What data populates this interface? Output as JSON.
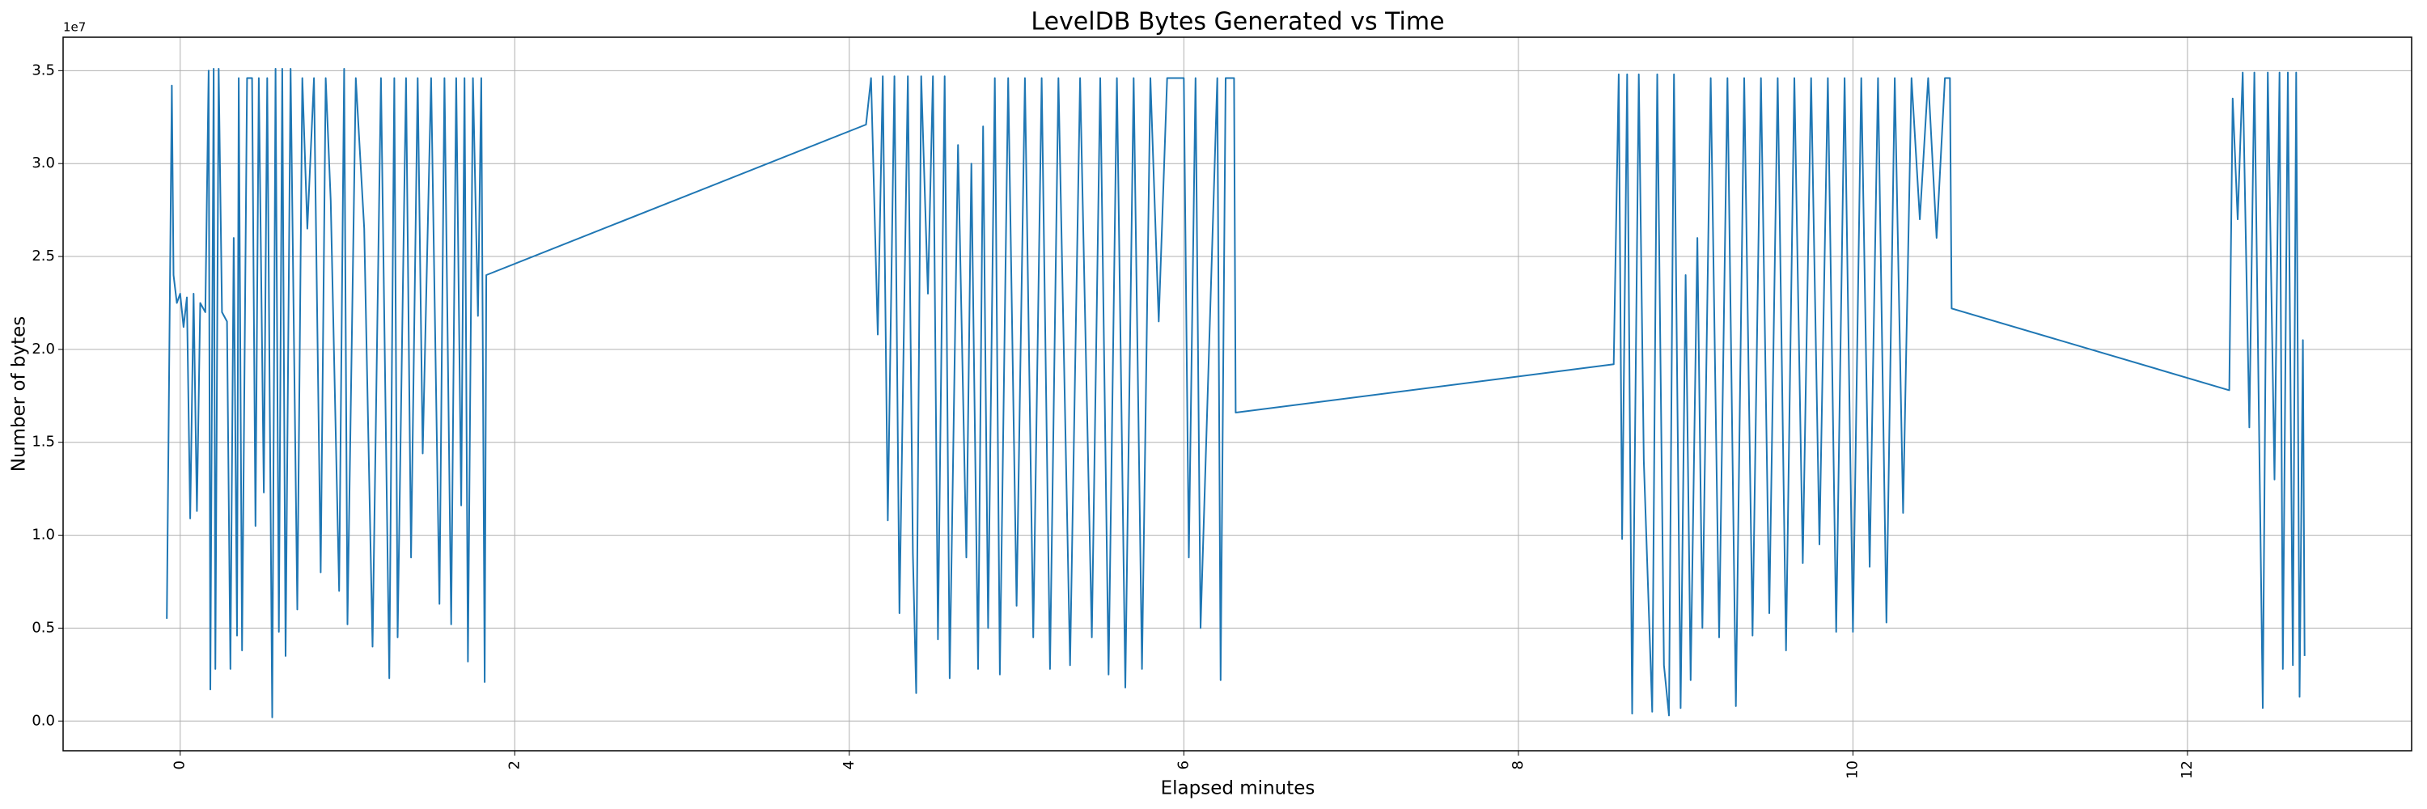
{
  "chart_data": {
    "type": "line",
    "title": "LevelDB Bytes Generated vs Time",
    "x_label": "Elapsed minutes",
    "y_label": "Number of bytes",
    "y_offset_label": "1e7",
    "grid": true,
    "xlim": [
      -0.7,
      13.34
    ],
    "ylim": [
      -0.16,
      3.68
    ],
    "xticks": [
      0,
      2,
      4,
      6,
      8,
      10,
      12
    ],
    "yticks": [
      {
        "value": 0,
        "label": "0.0"
      },
      0.5,
      {
        "value": 1,
        "label": "1.0"
      },
      1.5,
      {
        "value": 2,
        "label": "2.0"
      },
      2.5,
      {
        "value": 3,
        "label": "3.0"
      },
      3.5
    ],
    "x": [
      -0.08,
      -0.05,
      -0.04,
      -0.02,
      0,
      0.02,
      0.04,
      0.06,
      0.08,
      0.1,
      0.12,
      0.15,
      0.17,
      0.18,
      0.2,
      0.21,
      0.23,
      0.25,
      0.28,
      0.3,
      0.32,
      0.34,
      0.35,
      0.37,
      0.4,
      0.43,
      0.45,
      0.47,
      0.5,
      0.52,
      0.55,
      0.57,
      0.59,
      0.61,
      0.63,
      0.66,
      0.7,
      0.73,
      0.76,
      0.8,
      0.84,
      0.87,
      0.9,
      0.95,
      0.98,
      1.0,
      1.05,
      1.1,
      1.15,
      1.2,
      1.25,
      1.28,
      1.3,
      1.35,
      1.38,
      1.42,
      1.45,
      1.5,
      1.55,
      1.58,
      1.62,
      1.65,
      1.68,
      1.7,
      1.72,
      1.75,
      1.78,
      1.8,
      1.82,
      1.83,
      4.1,
      4.13,
      4.17,
      4.2,
      4.23,
      4.27,
      4.3,
      4.35,
      4.38,
      4.4,
      4.43,
      4.47,
      4.5,
      4.53,
      4.57,
      4.6,
      4.65,
      4.7,
      4.73,
      4.77,
      4.8,
      4.83,
      4.87,
      4.9,
      4.95,
      5.0,
      5.05,
      5.1,
      5.15,
      5.2,
      5.25,
      5.32,
      5.38,
      5.45,
      5.5,
      5.55,
      5.6,
      5.65,
      5.7,
      5.75,
      5.8,
      5.85,
      5.9,
      6.0,
      6.03,
      6.07,
      6.1,
      6.2,
      6.22,
      6.25,
      6.3,
      6.31,
      8.57,
      8.6,
      8.62,
      8.65,
      8.68,
      8.72,
      8.75,
      8.8,
      8.83,
      8.87,
      8.9,
      8.93,
      8.97,
      9.0,
      9.03,
      9.07,
      9.1,
      9.15,
      9.2,
      9.25,
      9.3,
      9.35,
      9.4,
      9.45,
      9.5,
      9.55,
      9.6,
      9.65,
      9.7,
      9.75,
      9.8,
      9.85,
      9.9,
      9.95,
      10.0,
      10.05,
      10.1,
      10.15,
      10.2,
      10.25,
      10.3,
      10.35,
      10.4,
      10.45,
      10.5,
      10.55,
      10.58,
      10.59,
      12.25,
      12.27,
      12.3,
      12.33,
      12.37,
      12.4,
      12.45,
      12.48,
      12.52,
      12.55,
      12.57,
      12.6,
      12.63,
      12.65,
      12.67,
      12.69,
      12.7
    ],
    "series": [
      {
        "color": "#1f77b4",
        "values": [
          0.55,
          3.42,
          2.4,
          2.25,
          2.3,
          2.12,
          2.28,
          1.09,
          2.3,
          1.13,
          2.25,
          2.2,
          3.5,
          0.17,
          3.51,
          0.28,
          3.51,
          2.2,
          2.15,
          0.28,
          2.6,
          0.46,
          3.46,
          0.38,
          3.46,
          3.46,
          1.05,
          3.46,
          1.23,
          3.46,
          0.02,
          3.51,
          0.48,
          3.51,
          0.35,
          3.51,
          0.6,
          3.46,
          2.65,
          3.46,
          0.8,
          3.46,
          2.8,
          0.7,
          3.51,
          0.52,
          3.46,
          2.65,
          0.4,
          3.46,
          0.23,
          3.46,
          0.45,
          3.46,
          0.88,
          3.46,
          1.44,
          3.46,
          0.63,
          3.46,
          0.52,
          3.46,
          1.16,
          3.46,
          0.32,
          3.46,
          2.18,
          3.46,
          0.21,
          2.4,
          3.21,
          3.46,
          2.08,
          3.47,
          1.08,
          3.47,
          0.58,
          3.47,
          0.9,
          0.15,
          3.47,
          2.3,
          3.47,
          0.44,
          3.47,
          0.23,
          3.1,
          0.88,
          3.0,
          0.28,
          3.2,
          0.5,
          3.46,
          0.25,
          3.46,
          0.62,
          3.46,
          0.45,
          3.46,
          0.28,
          3.46,
          0.3,
          3.46,
          0.45,
          3.46,
          0.25,
          3.46,
          0.18,
          3.46,
          0.28,
          3.46,
          2.15,
          3.46,
          3.46,
          0.88,
          3.46,
          0.5,
          3.46,
          0.22,
          3.46,
          3.46,
          1.66,
          1.92,
          3.48,
          0.98,
          3.48,
          0.04,
          3.48,
          1.4,
          0.05,
          3.48,
          0.3,
          0.03,
          3.48,
          0.07,
          2.4,
          0.22,
          2.6,
          0.5,
          3.46,
          0.45,
          3.46,
          0.08,
          3.46,
          0.46,
          3.46,
          0.58,
          3.46,
          0.38,
          3.46,
          0.85,
          3.46,
          0.95,
          3.46,
          0.48,
          3.46,
          0.48,
          3.46,
          0.83,
          3.46,
          0.53,
          3.46,
          1.12,
          3.46,
          2.7,
          3.46,
          2.6,
          3.46,
          3.46,
          2.22,
          1.78,
          3.35,
          2.7,
          3.49,
          1.58,
          3.49,
          0.07,
          3.49,
          1.3,
          3.49,
          0.28,
          3.49,
          0.3,
          3.49,
          0.13,
          2.05,
          0.35
        ]
      }
    ]
  }
}
